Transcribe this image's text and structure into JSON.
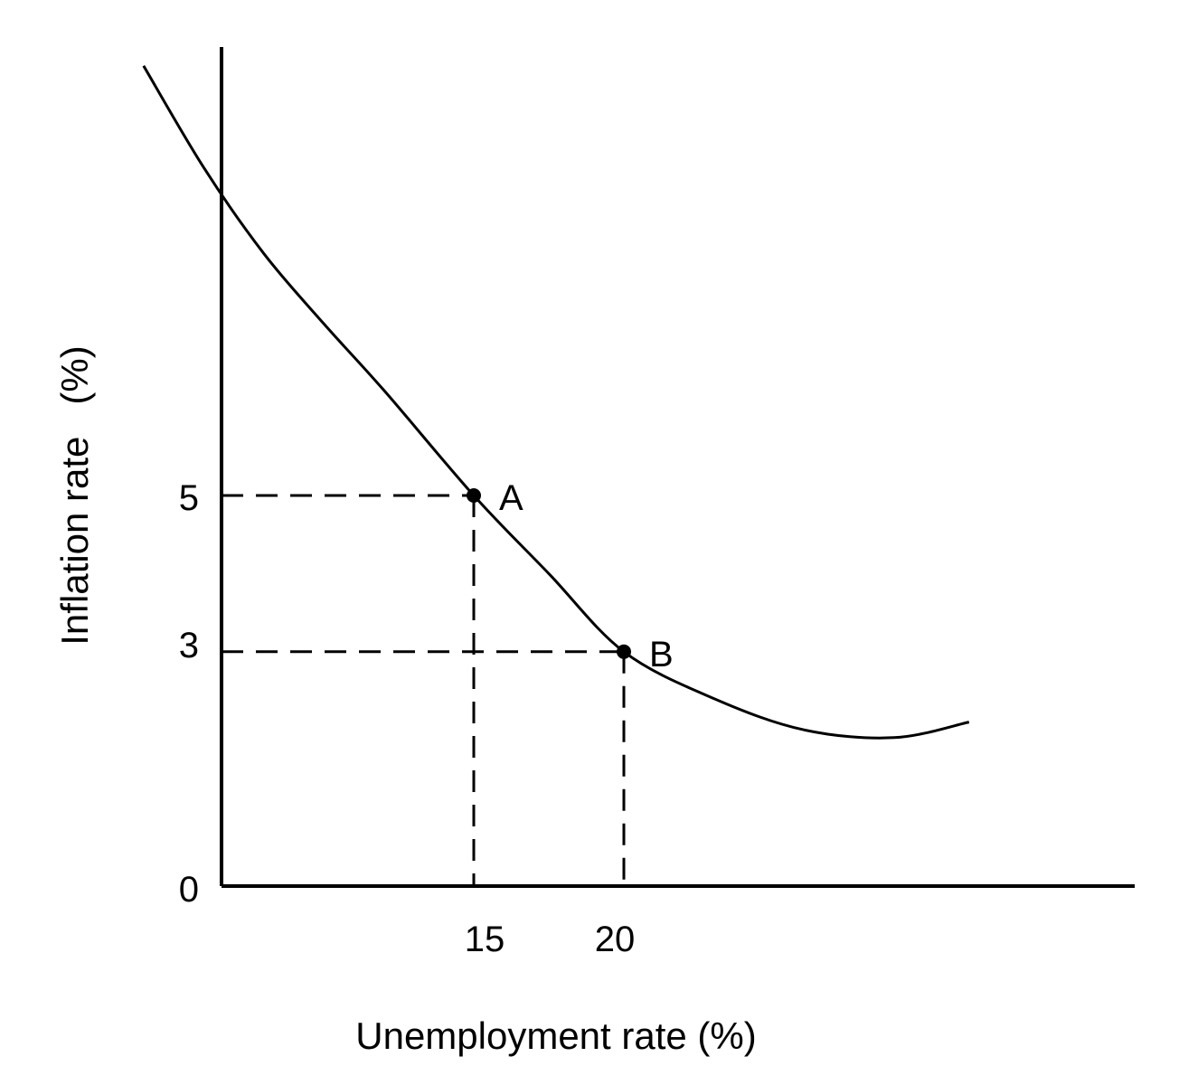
{
  "chart_data": {
    "type": "line",
    "title": "",
    "xlabel": "Unemployment rate (%)",
    "ylabel": "Inflation rate   (%)",
    "x_ticks": [
      "15",
      "20"
    ],
    "y_ticks": [
      "0",
      "3",
      "5"
    ],
    "grid": false,
    "legend": "none",
    "series": [
      {
        "points": [
          {
            "x": 4,
            "y": 10.5
          },
          {
            "x": 6,
            "y": 9.2
          },
          {
            "x": 8,
            "y": 8.1
          },
          {
            "x": 10,
            "y": 7.2
          },
          {
            "x": 12,
            "y": 6.35
          },
          {
            "x": 15,
            "y": 5
          },
          {
            "x": 17.5,
            "y": 4
          },
          {
            "x": 20,
            "y": 3
          },
          {
            "x": 23,
            "y": 2.4
          },
          {
            "x": 26,
            "y": 2.0
          },
          {
            "x": 29,
            "y": 1.9
          },
          {
            "x": 31.5,
            "y": 2.1
          }
        ]
      }
    ],
    "points": [
      {
        "label": "A",
        "x": 15,
        "y": 5
      },
      {
        "label": "B",
        "x": 20,
        "y": 3
      }
    ]
  }
}
